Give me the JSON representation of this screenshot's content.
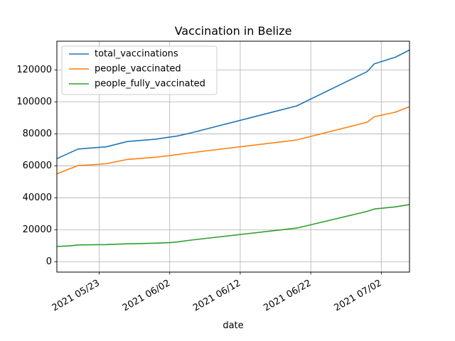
{
  "chart_data": {
    "type": "line",
    "title": "Vaccination in Belize",
    "xlabel": "date",
    "ylabel": "",
    "xlim": [
      "2021-05-17",
      "2021-07-06"
    ],
    "ylim": [
      -6500,
      138000
    ],
    "grid": true,
    "legend_position": "upper-left",
    "x_ticks": [
      "2021-05-23",
      "2021-06-02",
      "2021-06-12",
      "2021-06-22",
      "2021-07-02"
    ],
    "x_tick_labels": [
      "2021 05/23",
      "2021 06/02",
      "2021 06/12",
      "2021 06/22",
      "2021 07/02"
    ],
    "y_ticks": [
      0,
      20000,
      40000,
      60000,
      80000,
      100000,
      120000
    ],
    "y_tick_labels": [
      "0",
      "20000",
      "40000",
      "60000",
      "80000",
      "100000",
      "120000"
    ],
    "series": [
      {
        "name": "total_vaccinations",
        "color": "#1f77b4",
        "points": [
          [
            "2021-05-17",
            64500
          ],
          [
            "2021-05-20",
            70500
          ],
          [
            "2021-05-22",
            71200
          ],
          [
            "2021-05-24",
            71900
          ],
          [
            "2021-05-27",
            75200
          ],
          [
            "2021-05-31",
            76700
          ],
          [
            "2021-06-02",
            78000
          ],
          [
            "2021-06-03",
            78600
          ],
          [
            "2021-06-05",
            80600
          ],
          [
            "2021-06-20",
            97500
          ],
          [
            "2021-06-30",
            119000
          ],
          [
            "2021-07-01",
            123800
          ],
          [
            "2021-07-04",
            128000
          ],
          [
            "2021-07-06",
            132500
          ]
        ]
      },
      {
        "name": "people_vaccinated",
        "color": "#ff7f0e",
        "points": [
          [
            "2021-05-17",
            55000
          ],
          [
            "2021-05-20",
            60200
          ],
          [
            "2021-05-22",
            60700
          ],
          [
            "2021-05-24",
            61300
          ],
          [
            "2021-05-27",
            64000
          ],
          [
            "2021-05-31",
            65400
          ],
          [
            "2021-06-02",
            66400
          ],
          [
            "2021-06-03",
            67000
          ],
          [
            "2021-06-05",
            68200
          ],
          [
            "2021-06-20",
            76200
          ],
          [
            "2021-06-30",
            87300
          ],
          [
            "2021-07-01",
            90700
          ],
          [
            "2021-07-04",
            93600
          ],
          [
            "2021-07-06",
            97000
          ]
        ]
      },
      {
        "name": "people_fully_vaccinated",
        "color": "#2ca02c",
        "points": [
          [
            "2021-05-17",
            9500
          ],
          [
            "2021-05-19",
            10000
          ],
          [
            "2021-05-20",
            10500
          ],
          [
            "2021-05-24",
            10700
          ],
          [
            "2021-05-27",
            11200
          ],
          [
            "2021-05-31",
            11600
          ],
          [
            "2021-06-02",
            11900
          ],
          [
            "2021-06-03",
            12300
          ],
          [
            "2021-06-05",
            13500
          ],
          [
            "2021-06-20",
            21000
          ],
          [
            "2021-06-30",
            31500
          ],
          [
            "2021-07-01",
            33000
          ],
          [
            "2021-07-04",
            34300
          ],
          [
            "2021-07-06",
            35800
          ]
        ]
      }
    ]
  }
}
